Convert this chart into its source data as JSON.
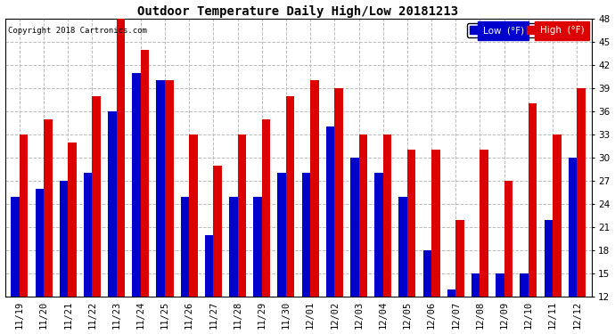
{
  "title": "Outdoor Temperature Daily High/Low 20181213",
  "copyright": "Copyright 2018 Cartronics.com",
  "legend_low": "Low  (°F)",
  "legend_high": "High  (°F)",
  "dates": [
    "11/19",
    "11/20",
    "11/21",
    "11/22",
    "11/23",
    "11/24",
    "11/25",
    "11/26",
    "11/27",
    "11/28",
    "11/29",
    "11/30",
    "12/01",
    "12/02",
    "12/03",
    "12/04",
    "12/05",
    "12/06",
    "12/07",
    "12/08",
    "12/09",
    "12/10",
    "12/11",
    "12/12"
  ],
  "lows": [
    25,
    26,
    27,
    28,
    36,
    41,
    40,
    25,
    20,
    25,
    25,
    28,
    28,
    34,
    30,
    28,
    25,
    18,
    13,
    15,
    15,
    15,
    22,
    30
  ],
  "highs": [
    33,
    35,
    32,
    38,
    48,
    44,
    40,
    33,
    29,
    33,
    35,
    38,
    40,
    39,
    33,
    33,
    31,
    31,
    22,
    31,
    27,
    37,
    33,
    39
  ],
  "low_color": "#0000cc",
  "high_color": "#dd0000",
  "bg_color": "#ffffff",
  "grid_color": "#bbbbbb",
  "ylim_min": 12.0,
  "ylim_max": 48.0,
  "yticks": [
    12.0,
    15.0,
    18.0,
    21.0,
    24.0,
    27.0,
    30.0,
    33.0,
    36.0,
    39.0,
    42.0,
    45.0,
    48.0
  ],
  "bar_bottom": 12.0,
  "figwidth": 6.9,
  "figheight": 3.75,
  "dpi": 100
}
